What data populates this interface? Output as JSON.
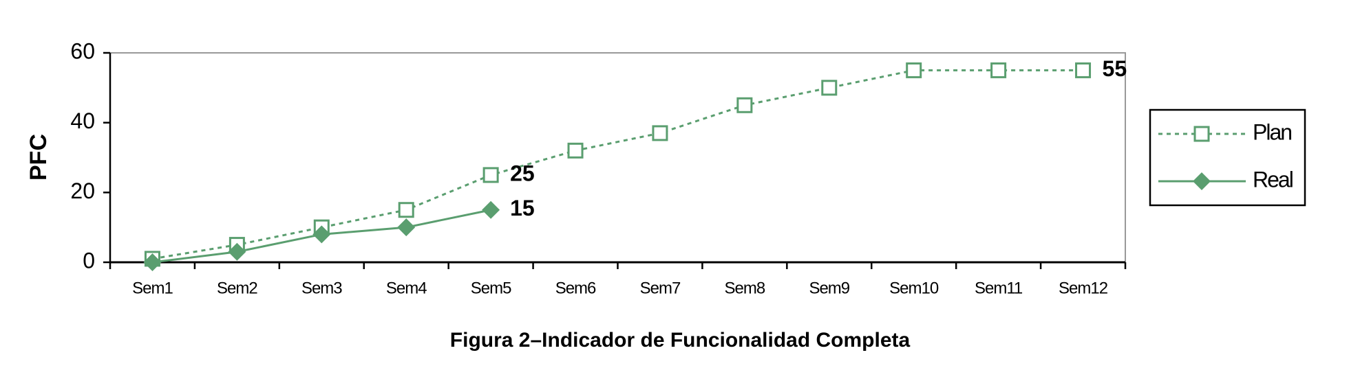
{
  "chart_data": {
    "type": "line",
    "y_label": "PFC",
    "caption": "Figura 2–Indicador de Funcionalidad Completa",
    "categories": [
      "Sem1",
      "Sem2",
      "Sem3",
      "Sem4",
      "Sem5",
      "Sem6",
      "Sem7",
      "Sem8",
      "Sem9",
      "Sem10",
      "Sem11",
      "Sem12"
    ],
    "series": [
      {
        "name": "Plan",
        "color": "#5a9e6f",
        "dash": "dotted",
        "marker": "square",
        "labeled_points": [
          4,
          11
        ],
        "values": [
          1,
          5,
          10,
          15,
          25,
          32,
          37,
          45,
          50,
          55,
          55,
          55
        ]
      },
      {
        "name": "Real",
        "color": "#5a9e6f",
        "dash": "solid",
        "marker": "diamond",
        "labeled_points": [
          4
        ],
        "values": [
          0,
          3,
          8,
          10,
          15,
          null,
          null,
          null,
          null,
          null,
          null,
          null
        ]
      }
    ],
    "ylim": [
      0,
      60
    ],
    "yticks": [
      0,
      20,
      40,
      60
    ],
    "grid": false,
    "legend": "right"
  }
}
